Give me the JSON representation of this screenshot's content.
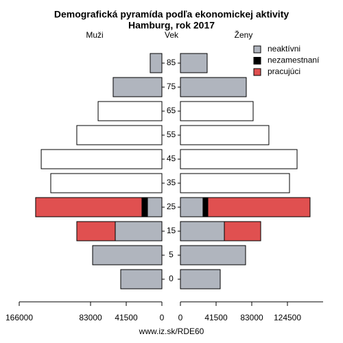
{
  "chart_data": {
    "type": "pyramid",
    "title": "Demografická pyramída podľa ekonomickej aktivity",
    "subtitle": "Hamburg, rok 2017",
    "left_label": "Muži",
    "right_label": "Ženy",
    "center_label": "Vek",
    "footer": "www.iz.sk/RDE60",
    "categories": [
      "0",
      "5",
      "15",
      "25",
      "35",
      "45",
      "55",
      "65",
      "75",
      "85"
    ],
    "xlim": [
      0,
      166000
    ],
    "xticks_left": [
      0,
      41500,
      83000,
      166000
    ],
    "xticks_right": [
      0,
      41500,
      83000,
      124500
    ],
    "series": [
      {
        "name": "neaktívni",
        "color": "#b0b5be",
        "men": [
          47900,
          80600,
          54300,
          16800,
          null,
          null,
          null,
          null,
          56700,
          13600
        ],
        "women": [
          46300,
          75800,
          51100,
          26300,
          null,
          null,
          null,
          null,
          76600,
          31100
        ]
      },
      {
        "name": "nezamestnaní",
        "color": "#000000",
        "men": [
          null,
          null,
          null,
          6400,
          null,
          null,
          null,
          null,
          null,
          null
        ],
        "women": [
          null,
          null,
          null,
          5600,
          null,
          null,
          null,
          null,
          null,
          null
        ]
      },
      {
        "name": "pracujúci",
        "color": "#e05050",
        "men": [
          null,
          null,
          44700,
          123700,
          null,
          null,
          null,
          null,
          null,
          null
        ],
        "women": [
          null,
          null,
          42300,
          118900,
          null,
          null,
          null,
          null,
          null,
          null
        ]
      },
      {
        "color": "#ffffff",
        "men": [
          null,
          null,
          null,
          null,
          129300,
          140400,
          99000,
          74200,
          null,
          null
        ],
        "women": [
          null,
          null,
          null,
          null,
          126900,
          135700,
          102900,
          84600,
          null,
          null
        ]
      }
    ]
  }
}
